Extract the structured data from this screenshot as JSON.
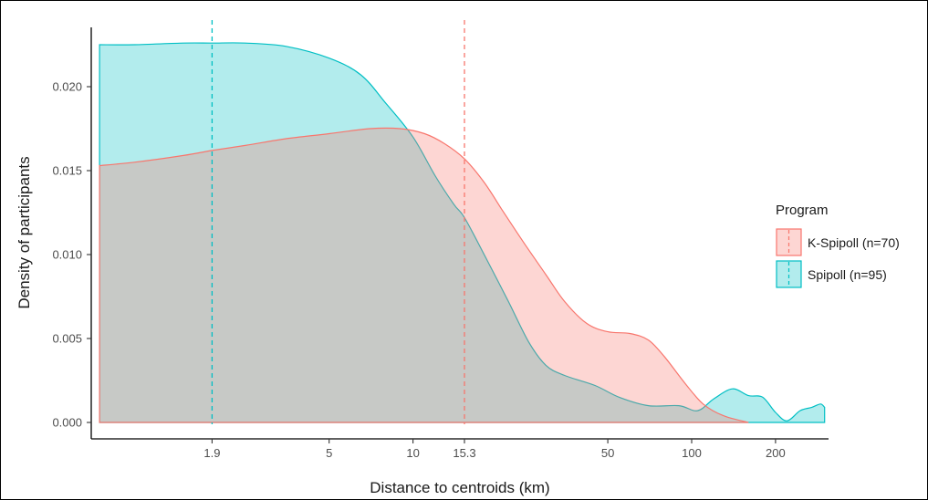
{
  "chart_data": {
    "type": "area",
    "xlabel": "Distance to centroids (km)",
    "ylabel": "Density of participants",
    "x_scale": "log10",
    "xlim": [
      0.7,
      310
    ],
    "ylim": [
      0,
      0.0235
    ],
    "x_ticks": [
      {
        "value": 1.9,
        "label": "1.9"
      },
      {
        "value": 5,
        "label": "5"
      },
      {
        "value": 10,
        "label": "10"
      },
      {
        "value": 15.3,
        "label": "15.3"
      },
      {
        "value": 50,
        "label": "50"
      },
      {
        "value": 100,
        "label": "100"
      },
      {
        "value": 200,
        "label": "200"
      }
    ],
    "y_ticks": [
      {
        "value": 0.0,
        "label": "0.000"
      },
      {
        "value": 0.005,
        "label": "0.005"
      },
      {
        "value": 0.01,
        "label": "0.010"
      },
      {
        "value": 0.015,
        "label": "0.015"
      },
      {
        "value": 0.02,
        "label": "0.020"
      }
    ],
    "grid": false,
    "legend": {
      "title": "Program",
      "position": "right"
    },
    "series": [
      {
        "name": "K-Spipoll (n=70)",
        "color": "#F8766D",
        "median": 15.3,
        "points": [
          [
            0.75,
            0.0153
          ],
          [
            1.0,
            0.0155
          ],
          [
            1.5,
            0.0159
          ],
          [
            1.9,
            0.0162
          ],
          [
            2.5,
            0.0165
          ],
          [
            3.5,
            0.0169
          ],
          [
            5,
            0.0172
          ],
          [
            7,
            0.0175
          ],
          [
            9,
            0.0175
          ],
          [
            11,
            0.0172
          ],
          [
            13,
            0.0166
          ],
          [
            15.3,
            0.0157
          ],
          [
            18,
            0.0143
          ],
          [
            21,
            0.0126
          ],
          [
            25,
            0.0107
          ],
          [
            30,
            0.0088
          ],
          [
            35,
            0.0072
          ],
          [
            42,
            0.0059
          ],
          [
            50,
            0.0054
          ],
          [
            60,
            0.0053
          ],
          [
            70,
            0.0049
          ],
          [
            80,
            0.0039
          ],
          [
            95,
            0.0023
          ],
          [
            110,
            0.0011
          ],
          [
            130,
            0.0004
          ],
          [
            160,
            0.0
          ]
        ]
      },
      {
        "name": "Spipoll (n=95)",
        "color": "#00BFC4",
        "median": 1.9,
        "points": [
          [
            0.75,
            0.0225
          ],
          [
            1.0,
            0.0225
          ],
          [
            1.5,
            0.0226
          ],
          [
            1.9,
            0.0226
          ],
          [
            2.5,
            0.0226
          ],
          [
            3.5,
            0.0224
          ],
          [
            5,
            0.0217
          ],
          [
            6.5,
            0.0207
          ],
          [
            8,
            0.019
          ],
          [
            10,
            0.017
          ],
          [
            12,
            0.0147
          ],
          [
            14,
            0.013
          ],
          [
            15.3,
            0.0122
          ],
          [
            18,
            0.01
          ],
          [
            22,
            0.0072
          ],
          [
            26,
            0.0048
          ],
          [
            30,
            0.0034
          ],
          [
            35,
            0.0028
          ],
          [
            45,
            0.0022
          ],
          [
            55,
            0.0015
          ],
          [
            70,
            0.001
          ],
          [
            90,
            0.001
          ],
          [
            105,
            0.0007
          ],
          [
            120,
            0.0014
          ],
          [
            140,
            0.002
          ],
          [
            160,
            0.0016
          ],
          [
            180,
            0.0015
          ],
          [
            200,
            0.0006
          ],
          [
            220,
            0.0001
          ],
          [
            245,
            0.0007
          ],
          [
            270,
            0.0009
          ],
          [
            290,
            0.0011
          ],
          [
            300,
            0.0009
          ]
        ]
      }
    ]
  }
}
